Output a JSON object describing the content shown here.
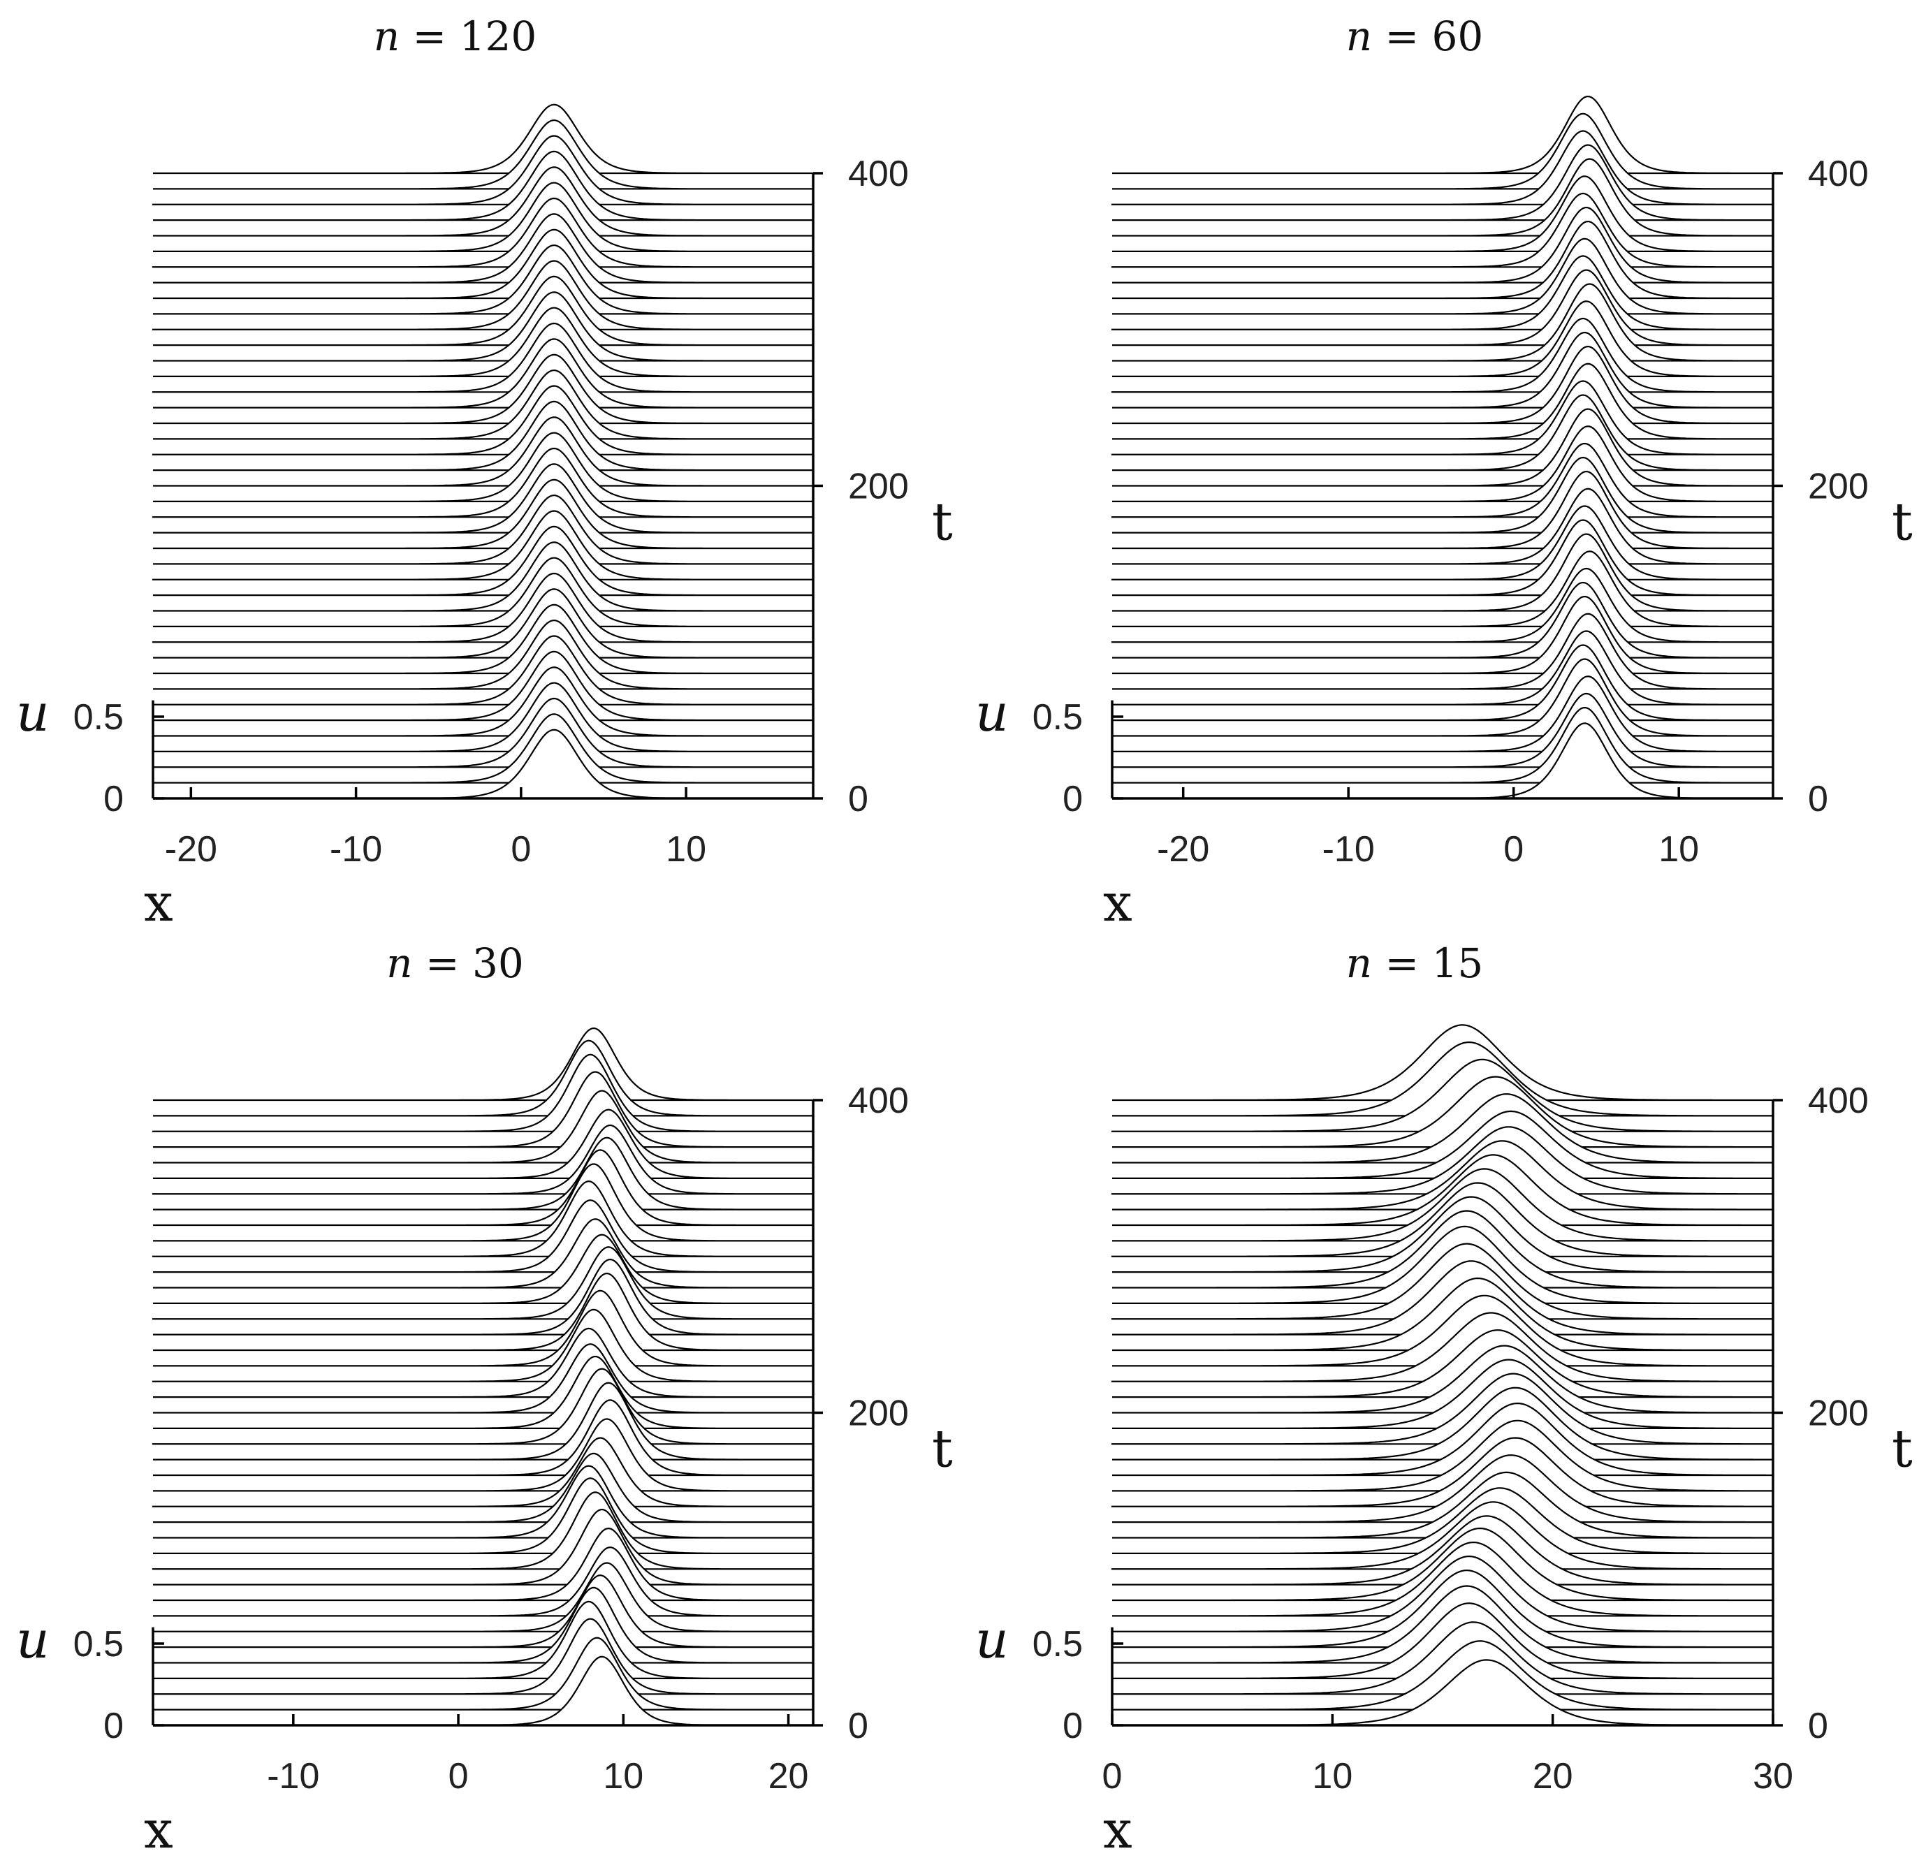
{
  "chart_data": [
    {
      "type": "line",
      "title_var": "n",
      "title_eq": " = ",
      "title_val": "120",
      "xlabel": "x",
      "ylabel": "u",
      "zlabel": "t",
      "xlim": [
        -22.3,
        17.7
      ],
      "xticks": [
        -20,
        -10,
        0,
        10
      ],
      "xtick_labels": [
        "-20",
        "-10",
        "0",
        "10"
      ],
      "ulim": [
        0,
        0.6
      ],
      "uticks": [
        0,
        0.5
      ],
      "utick_labels": [
        "0",
        "0.5"
      ],
      "tlim": [
        0,
        400
      ],
      "tticks": [
        0,
        200,
        400
      ],
      "ttick_labels": [
        "0",
        "200",
        "400"
      ],
      "t_samples": [
        0,
        10,
        20,
        30,
        40,
        50,
        60,
        70,
        80,
        90,
        100,
        110,
        120,
        130,
        140,
        150,
        160,
        170,
        180,
        190,
        200,
        210,
        220,
        230,
        240,
        250,
        260,
        270,
        280,
        290,
        300,
        310,
        320,
        330,
        340,
        350,
        360,
        370,
        380,
        390,
        400
      ],
      "series": [
        {
          "peak_x": [
            2.0,
            2.0,
            2.0,
            2.0,
            2.0,
            2.0,
            2.0,
            2.0,
            2.0,
            2.0,
            2.0,
            2.0,
            2.0,
            2.0,
            2.0,
            2.0,
            2.0,
            2.0,
            2.0,
            2.0,
            2.0,
            2.0,
            2.0,
            2.0,
            2.0,
            2.0,
            2.0,
            2.0,
            2.0,
            2.0,
            2.0,
            2.0,
            2.0,
            2.0,
            2.0,
            2.0,
            2.0,
            2.0,
            2.0,
            2.0,
            2.0
          ],
          "amplitude": [
            0.42,
            0.42,
            0.42,
            0.42,
            0.42,
            0.42,
            0.42,
            0.42,
            0.42,
            0.42,
            0.42,
            0.42,
            0.42,
            0.42,
            0.42,
            0.42,
            0.42,
            0.42,
            0.42,
            0.42,
            0.42,
            0.42,
            0.42,
            0.42,
            0.42,
            0.42,
            0.42,
            0.42,
            0.42,
            0.42,
            0.42,
            0.42,
            0.42,
            0.42,
            0.42,
            0.42,
            0.42,
            0.42,
            0.42,
            0.42,
            0.42
          ],
          "width": 2.0
        }
      ]
    },
    {
      "type": "line",
      "title_var": "n",
      "title_eq": " = ",
      "title_val": "60",
      "xlabel": "x",
      "ylabel": "u",
      "zlabel": "t",
      "xlim": [
        -24.3,
        15.7
      ],
      "xticks": [
        -20,
        -10,
        0,
        10
      ],
      "xtick_labels": [
        "-20",
        "-10",
        "0",
        "10"
      ],
      "ulim": [
        0,
        0.6
      ],
      "uticks": [
        0,
        0.5
      ],
      "utick_labels": [
        "0",
        "0.5"
      ],
      "tlim": [
        0,
        400
      ],
      "tticks": [
        0,
        200,
        400
      ],
      "ttick_labels": [
        "0",
        "200",
        "400"
      ],
      "t_samples": [
        0,
        10,
        20,
        30,
        40,
        50,
        60,
        70,
        80,
        90,
        100,
        110,
        120,
        130,
        140,
        150,
        160,
        170,
        180,
        190,
        200,
        210,
        220,
        230,
        240,
        250,
        260,
        270,
        280,
        290,
        300,
        310,
        320,
        330,
        340,
        350,
        360,
        370,
        380,
        390,
        400
      ],
      "series": [
        {
          "peak_x": [
            4.3,
            4.3,
            4.4,
            4.5,
            4.3,
            4.2,
            4.4,
            4.5,
            4.3,
            4.2,
            4.4,
            4.6,
            4.4,
            4.2,
            4.3,
            4.5,
            4.4,
            4.2,
            4.3,
            4.5,
            4.5,
            4.2,
            4.2,
            4.5,
            4.5,
            4.3,
            4.2,
            4.4,
            4.6,
            4.4,
            4.2,
            4.3,
            4.5,
            4.4,
            4.2,
            4.3,
            4.6,
            4.5,
            4.2,
            4.2,
            4.5
          ],
          "amplitude": [
            0.46,
            0.46,
            0.45,
            0.46,
            0.47,
            0.46,
            0.45,
            0.46,
            0.47,
            0.46,
            0.45,
            0.46,
            0.47,
            0.46,
            0.45,
            0.46,
            0.47,
            0.46,
            0.45,
            0.46,
            0.47,
            0.46,
            0.45,
            0.46,
            0.47,
            0.46,
            0.45,
            0.46,
            0.47,
            0.46,
            0.45,
            0.46,
            0.47,
            0.46,
            0.45,
            0.46,
            0.47,
            0.46,
            0.45,
            0.46,
            0.47
          ],
          "width": 1.9
        }
      ]
    },
    {
      "type": "line",
      "title_var": "n",
      "title_eq": " = ",
      "title_val": "30",
      "xlabel": "x",
      "ylabel": "u",
      "zlabel": "t",
      "xlim": [
        -18.5,
        21.5
      ],
      "xticks": [
        -10,
        0,
        10,
        20
      ],
      "xtick_labels": [
        "-10",
        "0",
        "10",
        "20"
      ],
      "ulim": [
        0,
        0.6
      ],
      "uticks": [
        0,
        0.5
      ],
      "utick_labels": [
        "0",
        "0.5"
      ],
      "tlim": [
        0,
        400
      ],
      "tticks": [
        0,
        200,
        400
      ],
      "ttick_labels": [
        "0",
        "200",
        "400"
      ],
      "t_samples": [
        0,
        10,
        20,
        30,
        40,
        50,
        60,
        70,
        80,
        90,
        100,
        110,
        120,
        130,
        140,
        150,
        160,
        170,
        180,
        190,
        200,
        210,
        220,
        230,
        240,
        250,
        260,
        270,
        280,
        290,
        300,
        310,
        320,
        330,
        340,
        350,
        360,
        370,
        380,
        390,
        400
      ],
      "series": [
        {
          "peak_x": [
            8.7,
            8.4,
            8.0,
            7.9,
            8.2,
            8.6,
            9.0,
            9.2,
            9.1,
            8.7,
            8.3,
            8.0,
            7.9,
            8.2,
            8.6,
            9.0,
            9.2,
            9.1,
            8.7,
            8.3,
            8.0,
            7.9,
            8.2,
            8.6,
            9.0,
            9.2,
            9.1,
            8.7,
            8.3,
            8.0,
            7.9,
            8.2,
            8.6,
            9.0,
            9.2,
            9.1,
            8.7,
            8.3,
            8.0,
            7.9,
            8.2
          ],
          "amplitude": [
            0.42,
            0.44,
            0.46,
            0.47,
            0.46,
            0.44,
            0.42,
            0.42,
            0.44,
            0.46,
            0.47,
            0.46,
            0.44,
            0.42,
            0.42,
            0.44,
            0.46,
            0.47,
            0.46,
            0.44,
            0.42,
            0.42,
            0.44,
            0.46,
            0.47,
            0.46,
            0.44,
            0.42,
            0.42,
            0.44,
            0.46,
            0.47,
            0.46,
            0.44,
            0.42,
            0.42,
            0.44,
            0.46,
            0.47,
            0.46,
            0.44
          ],
          "width": 1.8
        }
      ]
    },
    {
      "type": "line",
      "title_var": "n",
      "title_eq": " = ",
      "title_val": "15",
      "xlabel": "x",
      "ylabel": "u",
      "zlabel": "t",
      "xlim": [
        0,
        30
      ],
      "xticks": [
        0,
        10,
        20,
        30
      ],
      "xtick_labels": [
        "0",
        "10",
        "20",
        "30"
      ],
      "ulim": [
        0,
        0.6
      ],
      "uticks": [
        0,
        0.5
      ],
      "utick_labels": [
        "0",
        "0.5"
      ],
      "tlim": [
        0,
        400
      ],
      "tticks": [
        0,
        200,
        400
      ],
      "ttick_labels": [
        "0",
        "200",
        "400"
      ],
      "t_samples": [
        0,
        10,
        20,
        30,
        40,
        50,
        60,
        70,
        80,
        90,
        100,
        110,
        120,
        130,
        140,
        150,
        160,
        170,
        180,
        190,
        200,
        210,
        220,
        230,
        240,
        250,
        260,
        270,
        280,
        290,
        300,
        310,
        320,
        330,
        340,
        350,
        360,
        370,
        380,
        390,
        400
      ],
      "series": [
        {
          "peak_x": [
            17.0,
            16.7,
            16.4,
            16.2,
            16.1,
            16.1,
            16.2,
            16.4,
            16.7,
            17.0,
            17.3,
            17.6,
            17.9,
            18.1,
            18.3,
            18.4,
            18.4,
            18.3,
            18.2,
            18.0,
            17.8,
            17.5,
            17.2,
            16.9,
            16.6,
            16.3,
            16.1,
            16.0,
            16.1,
            16.3,
            16.6,
            16.9,
            17.3,
            17.7,
            18.0,
            18.1,
            17.9,
            17.4,
            16.8,
            16.2,
            15.9
          ],
          "amplitude": [
            0.4,
            0.42,
            0.44,
            0.46,
            0.47,
            0.47,
            0.46,
            0.45,
            0.44,
            0.42,
            0.41,
            0.4,
            0.4,
            0.41,
            0.42,
            0.43,
            0.44,
            0.44,
            0.43,
            0.42,
            0.41,
            0.41,
            0.42,
            0.43,
            0.44,
            0.45,
            0.46,
            0.47,
            0.47,
            0.46,
            0.45,
            0.44,
            0.43,
            0.42,
            0.41,
            0.41,
            0.42,
            0.43,
            0.44,
            0.45,
            0.46
          ],
          "width": 2.5
        }
      ]
    }
  ]
}
